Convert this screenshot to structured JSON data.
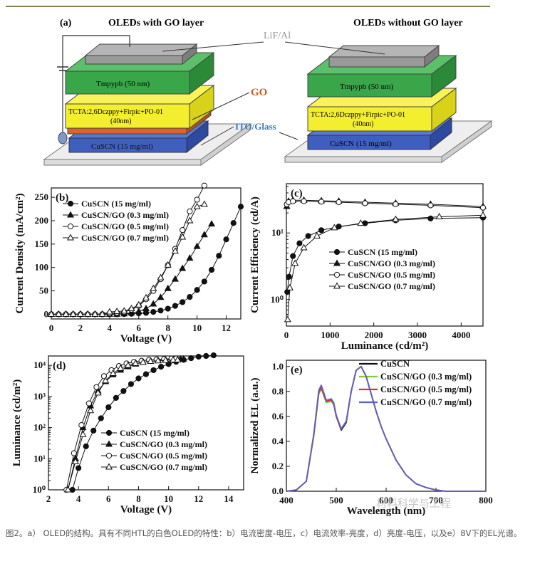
{
  "colors": {
    "topline": "#8a7a52",
    "green": "#3aa64a",
    "yellow": "#f4ef2e",
    "orange": "#d9652a",
    "blue": "#3f5fbf",
    "gray": "#999999",
    "glass": "#eeeeee",
    "go_label": "#d2581f",
    "ito_label": "#3a78c2"
  },
  "panel_a": {
    "label": "(a)",
    "left_title": "OLEDs with GO layer",
    "right_title": "OLEDs without GO layer",
    "lif": "LiF/Al",
    "tmpypb": "Tmpypb (50 nm)",
    "tcta_line1": "TCTA:2,6Dczppy+Firpic+PO-01",
    "tcta_line2": "(40nm)",
    "go": "GO",
    "ito": "ITO/Glass",
    "cuscn": "CuSCN (15 mg/ml)"
  },
  "chart_data": [
    {
      "id": "b",
      "type": "line",
      "label": "(b)",
      "xlabel": "Voltage (V)",
      "ylabel": "Current Density (mA/cm²)",
      "xlim": [
        0,
        13
      ],
      "ylim": [
        -10,
        270
      ],
      "xticks": [
        0,
        2,
        4,
        6,
        8,
        10,
        12
      ],
      "yticks": [
        0,
        50,
        100,
        150,
        200,
        250
      ],
      "series": [
        {
          "name": "CuSCN (15 mg/ml)",
          "marker": "circle-filled",
          "x": [
            0,
            0.5,
            1,
            1.5,
            2,
            2.5,
            3,
            3.5,
            4,
            4.5,
            5,
            5.5,
            6,
            6.5,
            7,
            7.5,
            8,
            8.5,
            9,
            9.5,
            10,
            10.5,
            11,
            11.5,
            12,
            12.5,
            13
          ],
          "y": [
            0,
            0,
            0,
            0,
            0,
            0,
            0,
            0,
            0,
            0,
            0.5,
            1,
            2,
            3,
            5,
            8,
            12,
            18,
            26,
            37,
            52,
            70,
            95,
            125,
            160,
            195,
            230
          ]
        },
        {
          "name": "CuSCN/GO (0.3 mg/ml)",
          "marker": "triangle-filled",
          "x": [
            0,
            0.5,
            1,
            1.5,
            2,
            2.5,
            3,
            3.5,
            4,
            4.5,
            5,
            5.5,
            6,
            6.5,
            7,
            7.5,
            8,
            8.5,
            9,
            9.5,
            10,
            10.5,
            11
          ],
          "y": [
            0,
            0,
            0,
            0,
            0,
            0,
            0,
            0,
            0,
            0,
            1,
            3,
            6,
            12,
            22,
            36,
            55,
            75,
            98,
            120,
            145,
            170,
            193
          ]
        },
        {
          "name": "CuSCN/GO (0.5 mg/ml)",
          "marker": "circle-open",
          "x": [
            0,
            0.5,
            1,
            1.5,
            2,
            2.5,
            3,
            3.5,
            4,
            4.5,
            5,
            5.5,
            6,
            6.5,
            7,
            7.5,
            8,
            8.5,
            9,
            9.5,
            10,
            10.5
          ],
          "y": [
            0,
            0,
            0,
            0,
            0,
            0,
            0,
            0,
            2,
            3,
            5,
            10,
            18,
            32,
            50,
            75,
            105,
            140,
            180,
            220,
            245,
            275
          ]
        },
        {
          "name": "CuSCN/GO (0.7 mg/ml)",
          "marker": "triangle-open",
          "x": [
            0,
            0.5,
            1,
            1.5,
            2,
            2.5,
            3,
            3.5,
            4,
            4.5,
            5,
            5.5,
            6,
            6.5,
            7,
            7.5,
            8,
            8.5,
            9,
            9.5,
            10,
            10.5
          ],
          "y": [
            0,
            0,
            0,
            0,
            0,
            0,
            0,
            0,
            5,
            6,
            7,
            12,
            20,
            35,
            55,
            78,
            105,
            135,
            165,
            200,
            230,
            235
          ]
        }
      ]
    },
    {
      "id": "c",
      "type": "line",
      "label": "(c)",
      "xlabel": "Luminance (cd/m²)",
      "ylabel": "Current Efficiency (cd/A)",
      "xscale": "linear",
      "yscale": "log",
      "xlim": [
        0,
        4500
      ],
      "ylim": [
        0.4,
        55
      ],
      "xticks": [
        0,
        1000,
        2000,
        3000,
        4000
      ],
      "yticks": [
        1,
        10
      ],
      "yticklabels": [
        "10⁰",
        "10¹"
      ],
      "series": [
        {
          "name": "CuSCN (15 mg/ml)",
          "marker": "circle-filled",
          "x": [
            20,
            60,
            150,
            300,
            500,
            800,
            1200,
            1800,
            2500,
            3300,
            4500
          ],
          "y": [
            1.3,
            2.2,
            4.5,
            7,
            9,
            11,
            12.5,
            14,
            15.5,
            16.5,
            17
          ]
        },
        {
          "name": "CuSCN/GO (0.3 mg/ml)",
          "marker": "triangle-filled",
          "x": [
            10,
            50,
            150,
            400,
            800,
            1200,
            1800,
            2500,
            3300,
            4500
          ],
          "y": [
            25,
            30,
            31,
            31,
            30.5,
            30,
            29,
            28,
            27,
            25
          ]
        },
        {
          "name": "CuSCN/GO (0.5 mg/ml)",
          "marker": "circle-open",
          "x": [
            10,
            50,
            150,
            400,
            800,
            1200,
            1800,
            2500,
            3300,
            4500
          ],
          "y": [
            27,
            29,
            30,
            30,
            29.5,
            29,
            28,
            27,
            26,
            24
          ]
        },
        {
          "name": "CuSCN/GO (0.7 mg/ml)",
          "marker": "triangle-open",
          "x": [
            30,
            80,
            200,
            400,
            700,
            1100,
            1700,
            2500,
            3500,
            4500
          ],
          "y": [
            0.5,
            1.5,
            3.5,
            6,
            9,
            12,
            14,
            16,
            17.5,
            18.5
          ]
        }
      ]
    },
    {
      "id": "d",
      "type": "line",
      "label": "(d)",
      "xlabel": "Voltage (V)",
      "ylabel": "Luminance (cd/m²)",
      "xscale": "linear",
      "yscale": "log",
      "xlim": [
        2,
        15
      ],
      "ylim": [
        1,
        20000
      ],
      "xticks": [
        2,
        4,
        6,
        8,
        10,
        12,
        14
      ],
      "yticks": [
        1,
        10,
        100,
        1000,
        10000
      ],
      "yticklabels": [
        "10⁰",
        "10¹",
        "10²",
        "10³",
        "10⁴"
      ],
      "series": [
        {
          "name": "CuSCN (15 mg/ml)",
          "marker": "circle-filled",
          "x": [
            3.6,
            4,
            4.5,
            5,
            5.5,
            6,
            6.5,
            7,
            7.5,
            8,
            8.5,
            9,
            9.5,
            10,
            10.5,
            11,
            11.5,
            12,
            12.5,
            13
          ],
          "y": [
            1,
            5,
            25,
            80,
            200,
            450,
            900,
            1500,
            2500,
            3800,
            5200,
            7000,
            9000,
            11000,
            13000,
            15000,
            17000,
            19000,
            20000,
            21000
          ]
        },
        {
          "name": "CuSCN/GO (0.3 mg/ml)",
          "marker": "triangle-filled",
          "x": [
            3.3,
            3.8,
            4.3,
            4.8,
            5.3,
            5.8,
            6.3,
            6.8,
            7.3,
            7.8,
            8.3,
            8.8,
            9.3,
            9.8,
            10.3,
            10.8,
            11
          ],
          "y": [
            1,
            10,
            100,
            500,
            1500,
            3000,
            5000,
            7000,
            9000,
            11000,
            12500,
            13500,
            14500,
            15000,
            15500,
            16000,
            16000
          ]
        },
        {
          "name": "CuSCN/GO (0.5 mg/ml)",
          "marker": "circle-open",
          "x": [
            3.2,
            3.7,
            4.2,
            4.7,
            5.2,
            5.7,
            6.2,
            6.7,
            7.2,
            7.7,
            8.2,
            8.7,
            9.2,
            9.7,
            10.2,
            10.5
          ],
          "y": [
            1,
            15,
            120,
            600,
            2000,
            4500,
            7000,
            9500,
            11500,
            13000,
            14000,
            15000,
            15500,
            16000,
            16500,
            16500
          ]
        },
        {
          "name": "CuSCN/GO (0.7 mg/ml)",
          "marker": "triangle-open",
          "x": [
            3.3,
            3.8,
            4.3,
            4.8,
            5.3,
            5.8,
            6.3,
            6.8,
            7.3,
            7.8,
            8.3,
            8.8,
            9.3,
            9.8,
            10.3,
            10.6
          ],
          "y": [
            1,
            8,
            60,
            350,
            1300,
            3200,
            5500,
            8000,
            10000,
            11500,
            12500,
            13500,
            14000,
            14500,
            15000,
            15000
          ]
        }
      ]
    },
    {
      "id": "e",
      "type": "line",
      "label": "(e)",
      "xlabel": "Wavelength (nm)",
      "ylabel": "Normalized EL (a.u.)",
      "xlim": [
        400,
        800
      ],
      "ylim": [
        0,
        1.05
      ],
      "xticks": [
        400,
        500,
        600,
        700,
        800
      ],
      "yticks": [
        0,
        0.2,
        0.4,
        0.6,
        0.8,
        1.0
      ],
      "yticklabels": [
        "0.0",
        "0.2",
        "0.4",
        "0.6",
        "0.8",
        "1.0"
      ],
      "series": [
        {
          "name": "CuSCN",
          "color": "#111111"
        },
        {
          "name": "CuSCN/GO (0.3 mg/ml)",
          "color": "#7ccf3a"
        },
        {
          "name": "CuSCN/GO (0.5 mg/ml)",
          "color": "#e03030"
        },
        {
          "name": "CuSCN/GO (0.7 mg/ml)",
          "color": "#5a60c8"
        }
      ],
      "x": [
        400,
        420,
        440,
        455,
        465,
        470,
        480,
        490,
        495,
        500,
        510,
        520,
        530,
        540,
        550,
        560,
        570,
        580,
        590,
        600,
        620,
        640,
        660,
        680,
        700,
        720,
        740,
        760,
        780,
        800
      ],
      "y_variants": [
        [
          0,
          0.01,
          0.08,
          0.45,
          0.8,
          0.84,
          0.72,
          0.73,
          0.7,
          0.6,
          0.49,
          0.55,
          0.8,
          0.97,
          1.0,
          0.92,
          0.78,
          0.64,
          0.52,
          0.42,
          0.25,
          0.13,
          0.06,
          0.03,
          0.01,
          0,
          0,
          0,
          0,
          0
        ],
        [
          0,
          0.01,
          0.08,
          0.44,
          0.78,
          0.82,
          0.71,
          0.72,
          0.69,
          0.6,
          0.5,
          0.56,
          0.8,
          0.97,
          1.0,
          0.92,
          0.78,
          0.64,
          0.52,
          0.42,
          0.25,
          0.13,
          0.06,
          0.03,
          0.01,
          0,
          0,
          0,
          0,
          0
        ],
        [
          0,
          0.01,
          0.08,
          0.45,
          0.79,
          0.83,
          0.72,
          0.73,
          0.7,
          0.6,
          0.5,
          0.56,
          0.8,
          0.97,
          1.0,
          0.92,
          0.78,
          0.64,
          0.52,
          0.42,
          0.25,
          0.13,
          0.06,
          0.03,
          0.01,
          0,
          0,
          0,
          0,
          0
        ],
        [
          0,
          0.01,
          0.08,
          0.46,
          0.81,
          0.85,
          0.73,
          0.74,
          0.71,
          0.61,
          0.5,
          0.56,
          0.8,
          0.97,
          1.0,
          0.92,
          0.78,
          0.64,
          0.52,
          0.42,
          0.25,
          0.13,
          0.06,
          0.03,
          0.01,
          0,
          0,
          0,
          0,
          0
        ]
      ]
    }
  ],
  "watermark": "材料科学与工程",
  "caption": "图2。a） OLED的结构。具有不同HTL的白色OLED的特性：b）电流密度-电压，c）电流效率-亮度，d）亮度-电压，以及e）8V下的EL光谱。"
}
